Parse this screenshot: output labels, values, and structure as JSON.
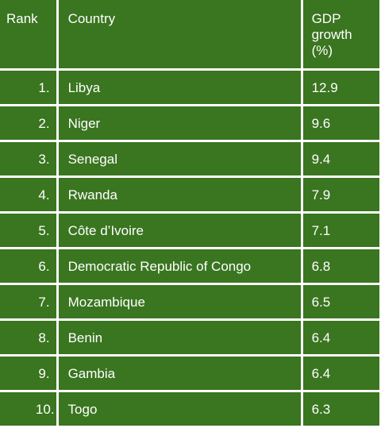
{
  "table": {
    "headers": {
      "rank": "Rank",
      "country": "Country",
      "gdp_growth": "GDP growth (%)"
    },
    "rows": [
      {
        "rank": "1.",
        "country": "Libya",
        "growth": "12.9"
      },
      {
        "rank": "2.",
        "country": "Niger",
        "growth": "9.6"
      },
      {
        "rank": "3.",
        "country": "Senegal",
        "growth": "9.4"
      },
      {
        "rank": "4.",
        "country": "Rwanda",
        "growth": "7.9"
      },
      {
        "rank": "5.",
        "country": "Côte d’Ivoire",
        "growth": "7.1"
      },
      {
        "rank": "6.",
        "country": "Democratic Republic of Congo",
        "growth": "6.8"
      },
      {
        "rank": "7.",
        "country": "Mozambique",
        "growth": "6.5"
      },
      {
        "rank": "8.",
        "country": "Benin",
        "growth": "6.4"
      },
      {
        "rank": "9.",
        "country": "Gambia",
        "growth": "6.4"
      },
      {
        "rank": "10.",
        "country": "Togo",
        "growth": "6.3"
      }
    ]
  },
  "colors": {
    "cell_background": "#3a7520",
    "text": "#ffffff",
    "grid_lines": "#ffffff"
  }
}
